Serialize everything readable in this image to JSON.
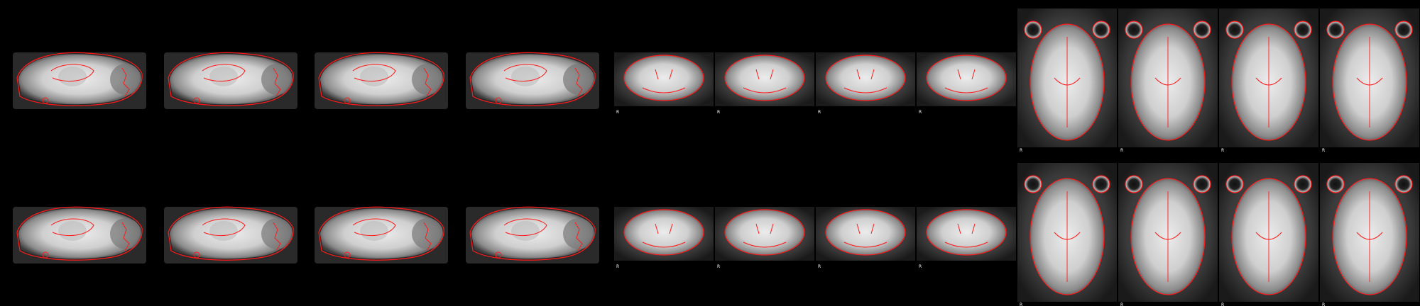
{
  "figure": {
    "background": "#000000",
    "contour_color": "#ff1a1a",
    "tissue_light": "#e6e6e6",
    "tissue_dark": "#1e1e1e",
    "orientation_label": "R",
    "rows": [
      {
        "name": "row-1",
        "panels": [
          {
            "view": "sagittal"
          },
          {
            "view": "sagittal"
          },
          {
            "view": "sagittal"
          },
          {
            "view": "sagittal"
          },
          {
            "view": "coronal",
            "label": "R"
          },
          {
            "view": "coronal",
            "label": "R"
          },
          {
            "view": "coronal",
            "label": "R"
          },
          {
            "view": "coronal",
            "label": "R"
          },
          {
            "view": "axial",
            "label": "R"
          },
          {
            "view": "axial",
            "label": "R"
          },
          {
            "view": "axial",
            "label": "R"
          },
          {
            "view": "axial",
            "label": "R"
          }
        ]
      },
      {
        "name": "row-2",
        "panels": [
          {
            "view": "sagittal"
          },
          {
            "view": "sagittal"
          },
          {
            "view": "sagittal"
          },
          {
            "view": "sagittal"
          },
          {
            "view": "coronal",
            "label": "R"
          },
          {
            "view": "coronal",
            "label": "R"
          },
          {
            "view": "coronal",
            "label": "R"
          },
          {
            "view": "coronal",
            "label": "R"
          },
          {
            "view": "axial",
            "label": "R"
          },
          {
            "view": "axial",
            "label": "R"
          },
          {
            "view": "axial",
            "label": "R"
          },
          {
            "view": "axial",
            "label": "R"
          }
        ]
      }
    ]
  }
}
